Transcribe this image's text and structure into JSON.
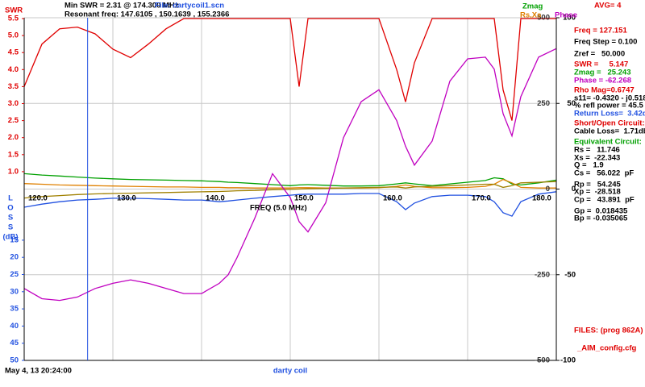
{
  "header": {
    "swr_label": "SWR",
    "min_swr": "Min SWR =   2.31 @  174.300 MHz",
    "resonant": "Resonant freq:  147.6105 , 150.1639 , 155.2366",
    "file": "File: dartycoil1.scn",
    "avg": "AVG=  4"
  },
  "readouts": [
    {
      "text": "Freq = 127.151",
      "color": "#e00000"
    },
    {
      "text": "Freq Step = 0.100",
      "color": "#000000"
    },
    {
      "text": "Zref =   50.000",
      "color": "#000000"
    },
    {
      "text": "SWR =     5.147",
      "color": "#e00000"
    },
    {
      "text": "Zmag =   25.243",
      "color": "#00a000"
    },
    {
      "text": "Phase = -62.268",
      "color": "#c000c0"
    },
    {
      "text": "Rho Mag=0.6747",
      "color": "#e00000"
    },
    {
      "text": "s11= -0.4320 - j0.5182",
      "color": "#000000"
    },
    {
      "text": "% refl power = 45.5",
      "color": "#000000"
    },
    {
      "text": "Return Loss=  3.42db",
      "color": "#2050e0"
    },
    {
      "text": "Short/Open Circuit:",
      "color": "#e00000"
    },
    {
      "text": "Cable Loss=  1.71db",
      "color": "#000000"
    },
    {
      "text": "Equivalent Circuit:",
      "color": "#00a000"
    },
    {
      "text": "Rs =   11.746",
      "color": "#000000"
    },
    {
      "text": "Xs =  -22.343",
      "color": "#000000"
    },
    {
      "text": "Q =   1.9",
      "color": "#000000"
    },
    {
      "text": "Cs =   56.022  pF",
      "color": "#000000"
    },
    {
      "text": "Rp =   54.245",
      "color": "#000000"
    },
    {
      "text": "Xp =  -28.518",
      "color": "#000000"
    },
    {
      "text": "Cp =   43.891  pF",
      "color": "#000000"
    },
    {
      "text": "Gp =  0.018435",
      "color": "#000000"
    },
    {
      "text": "Bp = -0.035065",
      "color": "#000000"
    }
  ],
  "files": {
    "label": "FILES:  (prog 862A)",
    "config": "_AIM_config.cfg"
  },
  "footer": {
    "timestamp": "May 4, 13   20:24:00",
    "title": "darty coil"
  },
  "chart_data": {
    "type": "line",
    "xlabel": "FREQ (5.0 MHz)",
    "x": [
      120,
      122,
      124,
      126,
      128,
      130,
      132,
      134,
      136,
      138,
      140,
      142,
      143,
      144,
      146,
      148,
      150,
      151,
      152,
      154,
      156,
      158,
      160,
      162,
      163,
      164,
      166,
      168,
      170,
      172,
      173,
      174,
      175,
      176,
      178,
      180
    ],
    "xlim": [
      120,
      180
    ],
    "xticks": [
      {
        "value": 120,
        "label": "120.0"
      },
      {
        "value": 130,
        "label": "130.0"
      },
      {
        "value": 140,
        "label": "140.0"
      },
      {
        "value": 150,
        "label": "150.0"
      },
      {
        "value": 160,
        "label": "160.0"
      },
      {
        "value": 170,
        "label": "170.0"
      },
      {
        "value": 180,
        "label": "180.0"
      }
    ],
    "cursor": 127.151,
    "grid": true,
    "ylim": [
      0.5,
      5.5
    ],
    "yticks": [
      {
        "value": 1,
        "label": "1.0"
      },
      1.5,
      {
        "value": 2,
        "label": "2.0"
      },
      2.5,
      {
        "value": 3,
        "label": "3.0"
      },
      3.5,
      {
        "value": 4,
        "label": "4.0"
      },
      4.5,
      {
        "value": 5,
        "label": "5.0"
      },
      5.5
    ],
    "y2lim": [
      -500,
      500
    ],
    "y2ticks": [
      500,
      250,
      0,
      -250,
      -500
    ],
    "y3lim": [
      -100,
      100
    ],
    "y3ticks": [
      100,
      50,
      0,
      -50,
      -100
    ],
    "y4lim": [
      0,
      50
    ],
    "y4ticks": [
      15,
      20,
      25,
      30,
      35,
      40,
      45,
      50
    ],
    "y4label": [
      "L",
      "O",
      "S",
      "S",
      "(dB)"
    ],
    "series": [
      {
        "name": "SWR",
        "axis": "y",
        "color": "#e00000",
        "values": [
          3.5,
          4.75,
          5.2,
          5.25,
          5.05,
          4.6,
          4.35,
          4.75,
          5.2,
          5.5,
          5.5,
          5.5,
          5.5,
          5.5,
          5.5,
          5.5,
          5.5,
          3.5,
          5.5,
          5.5,
          5.5,
          5.5,
          5.5,
          4.0,
          3.05,
          4.2,
          5.5,
          5.5,
          5.5,
          5.5,
          5.5,
          3.4,
          2.5,
          5.5,
          5.5,
          5.5
        ]
      },
      {
        "name": "Zmag",
        "axis": "y2",
        "color": "#00a000",
        "values": [
          45,
          41,
          38,
          35,
          32,
          30,
          28,
          27,
          26,
          25,
          24,
          22,
          20,
          19,
          16,
          13,
          10,
          12,
          13,
          11,
          9,
          9,
          10,
          15,
          18,
          15,
          10,
          15,
          20,
          25,
          33,
          30,
          15,
          12,
          18,
          26
        ]
      },
      {
        "name": "Rs,Xs",
        "axis": "y2",
        "color": "#e08000",
        "values": [
          16,
          14,
          12,
          11,
          10,
          9,
          8,
          7,
          6,
          6,
          5,
          5,
          4,
          4,
          3,
          3,
          3,
          4,
          4,
          3,
          3,
          3,
          4,
          8,
          12,
          8,
          4,
          4,
          5,
          8,
          14,
          28,
          18,
          5,
          3,
          3
        ]
      },
      {
        "axis": "y2",
        "color": "#a08000",
        "values": [
          -26,
          -22,
          -19,
          -16,
          -14,
          -13,
          -12,
          -11,
          -10,
          -9,
          -8,
          -7,
          -6,
          -5,
          -4,
          -2,
          -1,
          0,
          1,
          2,
          3,
          4,
          5,
          6,
          3,
          6,
          8,
          10,
          12,
          14,
          14,
          5,
          10,
          18,
          20,
          22
        ]
      },
      {
        "name": "Phase",
        "axis": "y3",
        "color": "#c000c0",
        "values": [
          -58,
          -64,
          -65,
          -63,
          -58,
          -55,
          -53,
          -55,
          -58,
          -61,
          -61,
          -55,
          -50,
          -40,
          -17,
          9,
          -5,
          -19,
          -25,
          -8,
          30,
          51,
          58,
          40,
          25,
          14,
          28,
          63,
          76,
          77,
          70,
          44,
          31,
          54,
          77,
          82
        ]
      },
      {
        "axis": "y4",
        "color": "#2050e0",
        "values": [
          5.4,
          4.5,
          3.8,
          3.3,
          3.1,
          2.8,
          2.8,
          2.9,
          3.1,
          3.3,
          3.3,
          3.8,
          3.6,
          3.3,
          2.8,
          2.3,
          1.9,
          1.7,
          1.6,
          1.6,
          1.6,
          1.4,
          1.4,
          3.8,
          6.1,
          4.2,
          2.3,
          1.9,
          1.9,
          2.3,
          3.8,
          7.0,
          8.0,
          3.8,
          1.6,
          0.9
        ]
      }
    ]
  }
}
